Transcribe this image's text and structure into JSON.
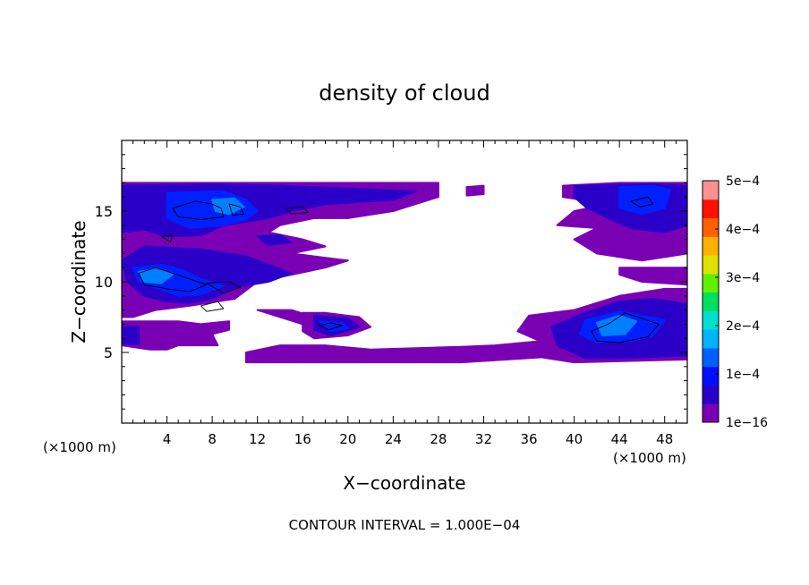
{
  "chart_data": {
    "type": "heatmap",
    "title": "density of cloud",
    "xlabel": "X−coordinate",
    "ylabel": "Z−coordinate",
    "x_unit_left": "(×1000 m)",
    "x_unit_right": "(×1000 m)",
    "footer": "CONTOUR INTERVAL = 1.000E−04",
    "xlim": [
      0,
      50
    ],
    "ylim": [
      0,
      20
    ],
    "x_ticks": [
      4,
      8,
      12,
      16,
      20,
      24,
      28,
      32,
      36,
      40,
      44,
      48
    ],
    "y_ticks": [
      5,
      10,
      15
    ],
    "colorbar": {
      "labels": [
        "5e−4",
        "4e−4",
        "3e−4",
        "2e−4",
        "1e−4",
        "1e−16"
      ],
      "values": [
        0.0005,
        0.0004,
        0.0003,
        0.0002,
        0.0001,
        1e-16
      ],
      "range": [
        1e-16,
        0.0005
      ],
      "colors": [
        "#7a00b4",
        "#2a00c8",
        "#0010ff",
        "#0060ff",
        "#00b4ff",
        "#00e0d0",
        "#00e060",
        "#60f000",
        "#e0e000",
        "#ffb000",
        "#ff6000",
        "#ff1000",
        "#ff9090"
      ]
    },
    "regions": [
      {
        "level": 1,
        "pts": [
          [
            0,
            17
          ],
          [
            28,
            17
          ],
          [
            28,
            16
          ],
          [
            26,
            15.5
          ],
          [
            24,
            15
          ],
          [
            20,
            14.5
          ],
          [
            17,
            14.5
          ],
          [
            14,
            14
          ],
          [
            13,
            13.5
          ],
          [
            16,
            13
          ],
          [
            18,
            12.5
          ],
          [
            15,
            12
          ],
          [
            20,
            11.5
          ],
          [
            18,
            11
          ],
          [
            15,
            10.5
          ],
          [
            12,
            10
          ],
          [
            10,
            8.8
          ],
          [
            6,
            8.3
          ],
          [
            3,
            8
          ],
          [
            1,
            7.5
          ],
          [
            0,
            7.5
          ]
        ]
      },
      {
        "level": 1,
        "pts": [
          [
            0,
            7.2
          ],
          [
            5,
            7.2
          ],
          [
            7,
            7
          ],
          [
            9.5,
            7.2
          ],
          [
            9.5,
            6.6
          ],
          [
            8,
            6.3
          ],
          [
            8.5,
            5.5
          ],
          [
            5,
            5.5
          ],
          [
            4,
            5.2
          ],
          [
            2.5,
            5.2
          ],
          [
            0,
            5.5
          ]
        ]
      },
      {
        "level": 1,
        "pts": [
          [
            12,
            8
          ],
          [
            15,
            8
          ],
          [
            17,
            7.5
          ],
          [
            16,
            7
          ]
        ]
      },
      {
        "level": 1,
        "pts": [
          [
            16,
            7.8
          ],
          [
            18,
            7.8
          ],
          [
            21,
            7.5
          ],
          [
            22,
            6.8
          ],
          [
            20,
            6.2
          ],
          [
            17,
            6
          ],
          [
            16,
            6.5
          ]
        ]
      },
      {
        "level": 1,
        "pts": [
          [
            11,
            5
          ],
          [
            14,
            5.5
          ],
          [
            18,
            5.5
          ],
          [
            22,
            5.2
          ],
          [
            26,
            5.3
          ],
          [
            30,
            5.4
          ],
          [
            33,
            5.5
          ],
          [
            37,
            5.8
          ],
          [
            40,
            5.6
          ],
          [
            40,
            4.8
          ],
          [
            30,
            4.3
          ],
          [
            20,
            4.3
          ],
          [
            11,
            4.3
          ]
        ]
      },
      {
        "level": 1,
        "pts": [
          [
            30.5,
            16.7
          ],
          [
            32,
            16.8
          ],
          [
            32,
            16.2
          ],
          [
            30.5,
            16.1
          ]
        ]
      },
      {
        "level": 1,
        "pts": [
          [
            39,
            16.8
          ],
          [
            44,
            17
          ],
          [
            50,
            17
          ],
          [
            50,
            12
          ],
          [
            46,
            11.5
          ],
          [
            42,
            12
          ],
          [
            40,
            13
          ],
          [
            42,
            13.8
          ],
          [
            38.5,
            14
          ],
          [
            40,
            15
          ],
          [
            43,
            15.5
          ],
          [
            39,
            16
          ]
        ]
      },
      {
        "level": 1,
        "pts": [
          [
            36,
            7.6
          ],
          [
            40,
            8
          ],
          [
            44,
            9
          ],
          [
            48,
            9.5
          ],
          [
            50,
            9.5
          ],
          [
            50,
            4.5
          ],
          [
            40,
            4.3
          ],
          [
            36,
            4.8
          ],
          [
            37,
            5.8
          ],
          [
            35,
            6.5
          ]
        ]
      },
      {
        "level": 1,
        "pts": [
          [
            44,
            11
          ],
          [
            50,
            11
          ],
          [
            50,
            9.8
          ],
          [
            46,
            10
          ],
          [
            44,
            10.5
          ]
        ]
      },
      {
        "level": 2,
        "pts": [
          [
            0,
            16.8
          ],
          [
            8,
            16.9
          ],
          [
            14,
            16.8
          ],
          [
            20,
            16.6
          ],
          [
            26,
            16.4
          ],
          [
            24,
            15.8
          ],
          [
            18,
            15.5
          ],
          [
            15,
            15
          ],
          [
            13,
            14.5
          ],
          [
            9,
            14
          ],
          [
            7,
            13.3
          ],
          [
            4,
            13.2
          ],
          [
            2,
            13.7
          ],
          [
            0,
            13.5
          ]
        ]
      },
      {
        "level": 2,
        "pts": [
          [
            2,
            12.5
          ],
          [
            7,
            12.3
          ],
          [
            11,
            11.8
          ],
          [
            13,
            11.2
          ],
          [
            15,
            10.6
          ],
          [
            13,
            10
          ],
          [
            10,
            9.6
          ],
          [
            8,
            8.8
          ],
          [
            6,
            8.5
          ],
          [
            4,
            8.6
          ],
          [
            2,
            9
          ],
          [
            0.5,
            10
          ],
          [
            0,
            11.5
          ]
        ]
      },
      {
        "level": 2,
        "pts": [
          [
            12,
            13.2
          ],
          [
            14,
            13.3
          ],
          [
            15,
            12.8
          ],
          [
            13,
            12.6
          ]
        ]
      },
      {
        "level": 2,
        "pts": [
          [
            0,
            6.8
          ],
          [
            1.5,
            6.8
          ],
          [
            1.5,
            5.6
          ],
          [
            0,
            5.6
          ]
        ]
      },
      {
        "level": 2,
        "pts": [
          [
            17,
            7.6
          ],
          [
            20,
            7.4
          ],
          [
            21,
            6.8
          ],
          [
            18.5,
            6.2
          ],
          [
            17,
            6.6
          ]
        ]
      },
      {
        "level": 2,
        "pts": [
          [
            40,
            16.8
          ],
          [
            47,
            16.9
          ],
          [
            50,
            16.8
          ],
          [
            50,
            14
          ],
          [
            48,
            13.5
          ],
          [
            45,
            13.8
          ],
          [
            43,
            14.5
          ],
          [
            41,
            15.3
          ],
          [
            40,
            16
          ]
        ]
      },
      {
        "level": 2,
        "pts": [
          [
            38,
            6.8
          ],
          [
            41,
            7.8
          ],
          [
            44,
            8.6
          ],
          [
            47,
            8.8
          ],
          [
            50,
            8.4
          ],
          [
            50,
            4.8
          ],
          [
            45,
            4.6
          ],
          [
            41,
            4.6
          ],
          [
            38.5,
            5.5
          ]
        ]
      },
      {
        "level": 3,
        "pts": [
          [
            4,
            16.3
          ],
          [
            9,
            16.4
          ],
          [
            11,
            15.8
          ],
          [
            12,
            15
          ],
          [
            11,
            14.4
          ],
          [
            9,
            14
          ],
          [
            6,
            13.8
          ],
          [
            4,
            14.5
          ]
        ]
      },
      {
        "level": 3,
        "pts": [
          [
            1,
            11
          ],
          [
            3.5,
            11.2
          ],
          [
            5.5,
            10.8
          ],
          [
            7,
            10.2
          ],
          [
            9,
            9.7
          ],
          [
            7,
            9.1
          ],
          [
            5,
            9
          ],
          [
            3,
            9.6
          ],
          [
            1.5,
            10
          ]
        ]
      },
      {
        "level": 3,
        "pts": [
          [
            41,
            7.3
          ],
          [
            44,
            7.9
          ],
          [
            46,
            7.6
          ],
          [
            48,
            7.3
          ],
          [
            47,
            6.2
          ],
          [
            45,
            5.8
          ],
          [
            42,
            5.7
          ],
          [
            40.5,
            6.3
          ]
        ]
      },
      {
        "level": 3,
        "pts": [
          [
            44,
            16.7
          ],
          [
            47,
            16.8
          ],
          [
            48.5,
            16.5
          ],
          [
            48,
            15.2
          ],
          [
            46,
            14.8
          ],
          [
            44,
            15.2
          ]
        ]
      },
      {
        "level": 3,
        "pts": [
          [
            17.5,
            7.2
          ],
          [
            19.5,
            7.1
          ],
          [
            20,
            6.7
          ],
          [
            18.5,
            6.5
          ]
        ]
      },
      {
        "level": 4,
        "pts": [
          [
            1.5,
            10.7
          ],
          [
            3,
            10.9
          ],
          [
            4.5,
            10.5
          ],
          [
            3.5,
            9.9
          ],
          [
            2,
            10
          ]
        ]
      },
      {
        "level": 4,
        "pts": [
          [
            42,
            7.1
          ],
          [
            44,
            7.6
          ],
          [
            45.5,
            7.2
          ],
          [
            44.5,
            6.3
          ],
          [
            42.5,
            6.2
          ]
        ]
      },
      {
        "level": 4,
        "pts": [
          [
            8,
            15.8
          ],
          [
            10,
            15.9
          ],
          [
            10.8,
            15.3
          ],
          [
            9.5,
            14.8
          ],
          [
            8.3,
            15
          ]
        ]
      }
    ],
    "contours": [
      [
        [
          4.5,
          15.2
        ],
        [
          6.5,
          15.7
        ],
        [
          8,
          15.5
        ],
        [
          8.8,
          15.2
        ],
        [
          9,
          14.6
        ],
        [
          7,
          14.4
        ],
        [
          5,
          14.6
        ]
      ],
      [
        [
          9.5,
          15.5
        ],
        [
          10.5,
          15.3
        ],
        [
          10.8,
          14.8
        ],
        [
          9.8,
          14.7
        ]
      ],
      [
        [
          14.5,
          15.2
        ],
        [
          16,
          15.3
        ],
        [
          16.5,
          14.9
        ],
        [
          15,
          14.8
        ]
      ],
      [
        [
          1.5,
          10.6
        ],
        [
          3,
          11
        ],
        [
          4.5,
          10.6
        ],
        [
          6,
          10.2
        ],
        [
          7.5,
          9.8
        ],
        [
          6,
          9.3
        ],
        [
          4,
          9.5
        ],
        [
          2,
          9.8
        ]
      ],
      [
        [
          7.5,
          9.9
        ],
        [
          9.5,
          10
        ],
        [
          10.5,
          9.6
        ],
        [
          9,
          9.2
        ]
      ],
      [
        [
          7,
          8.3
        ],
        [
          8.5,
          8.6
        ],
        [
          9,
          8.1
        ],
        [
          7.5,
          7.9
        ]
      ],
      [
        [
          3.5,
          13.2
        ],
        [
          4.5,
          13.3
        ],
        [
          4.3,
          12.8
        ]
      ],
      [
        [
          41.5,
          6.5
        ],
        [
          43,
          7
        ],
        [
          44.5,
          7.8
        ],
        [
          46,
          7.4
        ],
        [
          47.5,
          7
        ],
        [
          46.5,
          6.1
        ],
        [
          44,
          5.7
        ],
        [
          42,
          5.8
        ]
      ],
      [
        [
          45,
          15.7
        ],
        [
          46.5,
          16
        ],
        [
          47,
          15.5
        ],
        [
          45.8,
          15.3
        ]
      ],
      [
        [
          17.5,
          6.9
        ],
        [
          18.5,
          7.1
        ],
        [
          19.5,
          6.9
        ],
        [
          18.3,
          6.6
        ]
      ]
    ]
  }
}
